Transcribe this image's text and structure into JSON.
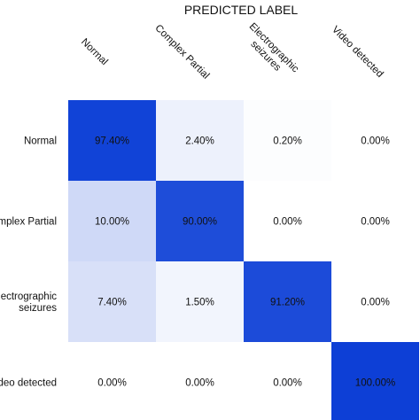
{
  "chart_data": {
    "type": "heatmap",
    "title": "PREDICTED LABEL",
    "x_categories": [
      "Normal",
      "Complex Partial",
      "Electrographic\nseizures",
      "Video detected"
    ],
    "y_categories": [
      "Normal",
      "Complex Partial",
      "Electrographic\nseizures",
      "Video detected"
    ],
    "values": [
      [
        97.4,
        2.4,
        0.2,
        0.0
      ],
      [
        10.0,
        90.0,
        0.0,
        0.0
      ],
      [
        7.4,
        1.5,
        91.2,
        0.0
      ],
      [
        0.0,
        0.0,
        0.0,
        100.0
      ]
    ],
    "cell_labels": [
      [
        "97.40%",
        "2.40%",
        "0.20%",
        "0.00%"
      ],
      [
        "10.00%",
        "90.00%",
        "0.00%",
        "0.00%"
      ],
      [
        "7.40%",
        "1.50%",
        "91.20%",
        "0.00%"
      ],
      [
        "0.00%",
        "0.00%",
        "0.00%",
        "100.00%"
      ]
    ],
    "value_range": [
      0,
      100
    ],
    "colors": {
      "low": "#ffffff",
      "high": "#0d3fd6",
      "text": "#111111"
    }
  }
}
